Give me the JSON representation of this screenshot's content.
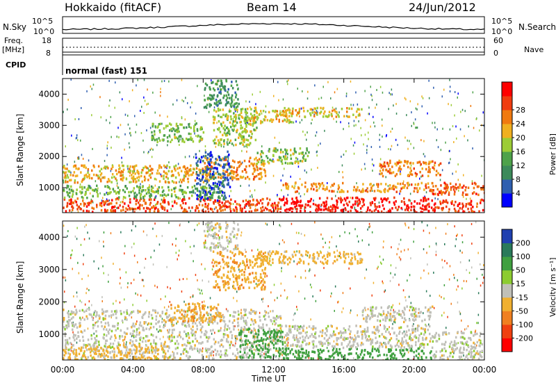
{
  "header": {
    "station": "Hokkaido (fitACF)",
    "beam": "Beam 14",
    "date": "24/Jun/2012"
  },
  "strips": {
    "nsky_label": "N.Sky",
    "nsky_ticks": [
      "10^5",
      "10^0"
    ],
    "nsearch_label": "N.Search",
    "nsearch_ticks": [
      "10^5",
      "10^0"
    ],
    "freq_label": "Freq.",
    "freq_unit": "[MHz]",
    "freq_ticks": [
      "18",
      "8"
    ],
    "nave_label": "Nave",
    "nave_ticks": [
      "60",
      "0"
    ],
    "cpid_label": "CPID",
    "cpid_text": "normal (fast) 151"
  },
  "colors": {
    "power": [
      "#0000ff",
      "#2f5fb0",
      "#3c8a5a",
      "#4ea24a",
      "#9ccc36",
      "#f0b020",
      "#f07a10",
      "#f03c10",
      "#ff0000"
    ],
    "velocity": [
      "#ff0000",
      "#f04010",
      "#f08020",
      "#f0b030",
      "#c0c0b8",
      "#8ccc30",
      "#40a040",
      "#2a7a5a",
      "#2040b0"
    ]
  },
  "chart_data": [
    {
      "type": "heatmap",
      "panel": "power",
      "ylabel": "Slant Range [km]",
      "y_ticks": [
        "1000",
        "2000",
        "3000",
        "4000"
      ],
      "ylim": [
        200,
        4500
      ],
      "xlim_hours": [
        0,
        24
      ],
      "colorbar_label": "Power [dB]",
      "colorbar_ticks": [
        "4",
        "8",
        "12",
        "16",
        "20",
        "24",
        "28"
      ],
      "colorbar_range": [
        0,
        32
      ],
      "regions": [
        {
          "t": [
            0,
            12.3
          ],
          "r": [
            250,
            700
          ],
          "v": 26
        },
        {
          "t": [
            12.3,
            21.0
          ],
          "r": [
            200,
            720
          ],
          "v": 30
        },
        {
          "t": [
            21.0,
            24
          ],
          "r": [
            250,
            650
          ],
          "v": 27
        },
        {
          "t": [
            0,
            9
          ],
          "r": [
            700,
            1100
          ],
          "v": 14
        },
        {
          "t": [
            0,
            8.5
          ],
          "r": [
            1200,
            1750
          ],
          "v": 20
        },
        {
          "t": [
            8,
            11.5
          ],
          "r": [
            1300,
            2000
          ],
          "v": 22
        },
        {
          "t": [
            12.5,
            21
          ],
          "r": [
            900,
            1200
          ],
          "v": 22
        },
        {
          "t": [
            18,
            21.5
          ],
          "r": [
            1400,
            1900
          ],
          "v": 23
        },
        {
          "t": [
            21,
            24
          ],
          "r": [
            800,
            1200
          ],
          "v": 25
        },
        {
          "t": [
            7.5,
            9.5
          ],
          "r": [
            600,
            2200
          ],
          "v": 6
        },
        {
          "t": [
            8.5,
            11
          ],
          "r": [
            2400,
            3600
          ],
          "v": 16
        },
        {
          "t": [
            10,
            13
          ],
          "r": [
            3100,
            3500
          ],
          "v": 18
        },
        {
          "t": [
            12,
            17
          ],
          "r": [
            3300,
            3600
          ],
          "v": 19
        },
        {
          "t": [
            8,
            10
          ],
          "r": [
            3600,
            4500
          ],
          "v": 10
        },
        {
          "t": [
            5,
            8
          ],
          "r": [
            2500,
            3100
          ],
          "v": 14
        },
        {
          "t": [
            11,
            14
          ],
          "r": [
            1800,
            2300
          ],
          "v": 15
        }
      ]
    },
    {
      "type": "heatmap",
      "panel": "velocity",
      "ylabel": "Slant Range [km]",
      "y_ticks": [
        "1000",
        "2000",
        "3000",
        "4000"
      ],
      "ylim": [
        200,
        4500
      ],
      "xlabel": "Time UT",
      "x_ticks": [
        "00:00",
        "04:00",
        "08:00",
        "12:00",
        "16:00",
        "20:00",
        "00:00"
      ],
      "xlim_hours": [
        0,
        24
      ],
      "colorbar_label": "Velocity [m s⁻¹]",
      "colorbar_ticks": [
        "-200",
        "-100",
        "-50",
        "-15",
        "15",
        "50",
        "100",
        "200"
      ],
      "regions": [
        {
          "t": [
            0,
            12.5
          ],
          "r": [
            200,
            1800
          ],
          "v": 0
        },
        {
          "t": [
            0,
            6
          ],
          "r": [
            250,
            700
          ],
          "v": -30
        },
        {
          "t": [
            6,
            9
          ],
          "r": [
            1400,
            2000
          ],
          "v": -40
        },
        {
          "t": [
            8.5,
            11.5
          ],
          "r": [
            2400,
            3600
          ],
          "v": -40
        },
        {
          "t": [
            10,
            12.5
          ],
          "r": [
            300,
            1200
          ],
          "v": 80
        },
        {
          "t": [
            12.5,
            21
          ],
          "r": [
            200,
            600
          ],
          "v": 70
        },
        {
          "t": [
            12.5,
            21
          ],
          "r": [
            600,
            1300
          ],
          "v": 0
        },
        {
          "t": [
            21,
            24
          ],
          "r": [
            200,
            1100
          ],
          "v": 0
        },
        {
          "t": [
            17,
            21
          ],
          "r": [
            1400,
            1900
          ],
          "v": 0
        },
        {
          "t": [
            11,
            17
          ],
          "r": [
            3200,
            3600
          ],
          "v": -30
        },
        {
          "t": [
            8,
            10
          ],
          "r": [
            3600,
            4500
          ],
          "v": 0
        }
      ]
    }
  ]
}
